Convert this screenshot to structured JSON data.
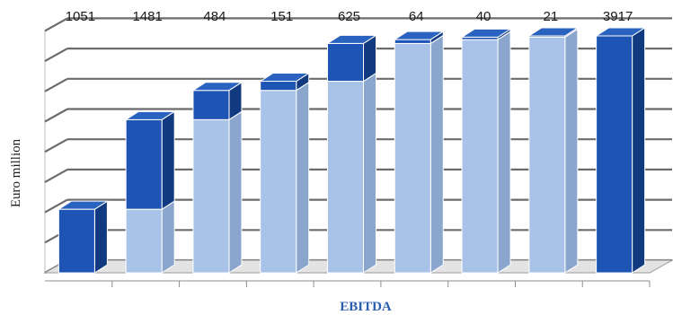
{
  "chart_data": {
    "type": "bar",
    "subtype": "waterfall-3d",
    "categories": [
      "",
      "",
      "",
      "",
      "",
      "",
      "",
      "",
      ""
    ],
    "values": [
      1051,
      1481,
      484,
      151,
      625,
      64,
      40,
      21,
      3917
    ],
    "data_labels": [
      "1051",
      "1481",
      "484",
      "151",
      "625",
      "64",
      "40",
      "21",
      "3917"
    ],
    "is_total": [
      false,
      false,
      false,
      false,
      false,
      false,
      false,
      false,
      true
    ],
    "title": "",
    "xlabel": "EBITDA",
    "ylabel": "Euro million",
    "ylim": [
      0,
      4000
    ],
    "grid": true,
    "legend": "none",
    "colors": {
      "increment_front": "#1e55b5",
      "increment_top": "#2a62c0",
      "increment_side": "#123a80",
      "base_front": "#a9c3e8",
      "base_top": "#c4d7f1",
      "base_side": "#8aa6cc",
      "floor": "#e3e3e3",
      "grid": "#6b6b6b",
      "title_blue": "#2a5fb0"
    }
  }
}
